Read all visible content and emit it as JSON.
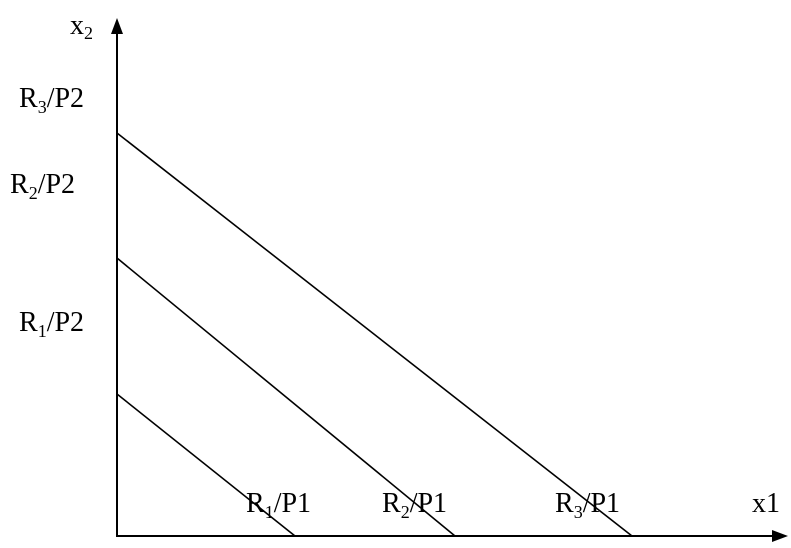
{
  "axes": {
    "x_label": {
      "main": "x1"
    },
    "y_label": {
      "main": "x",
      "sub": "2"
    }
  },
  "budget_lines": [
    {
      "y_intercept_label": {
        "pre": "R",
        "sub": "1",
        "post": "/P2"
      },
      "x_intercept_label": {
        "pre": "R",
        "sub": "1",
        "post": "/P1"
      }
    },
    {
      "y_intercept_label": {
        "pre": "R",
        "sub": "2",
        "post": "/P2"
      },
      "x_intercept_label": {
        "pre": "R",
        "sub": "2",
        "post": "/P1"
      }
    },
    {
      "y_intercept_label": {
        "pre": "R",
        "sub": "3",
        "post": "/P2"
      },
      "x_intercept_label": {
        "pre": "R",
        "sub": "3",
        "post": "/P1"
      }
    }
  ],
  "colors": {
    "ink": "#000000",
    "background": "#ffffff"
  }
}
